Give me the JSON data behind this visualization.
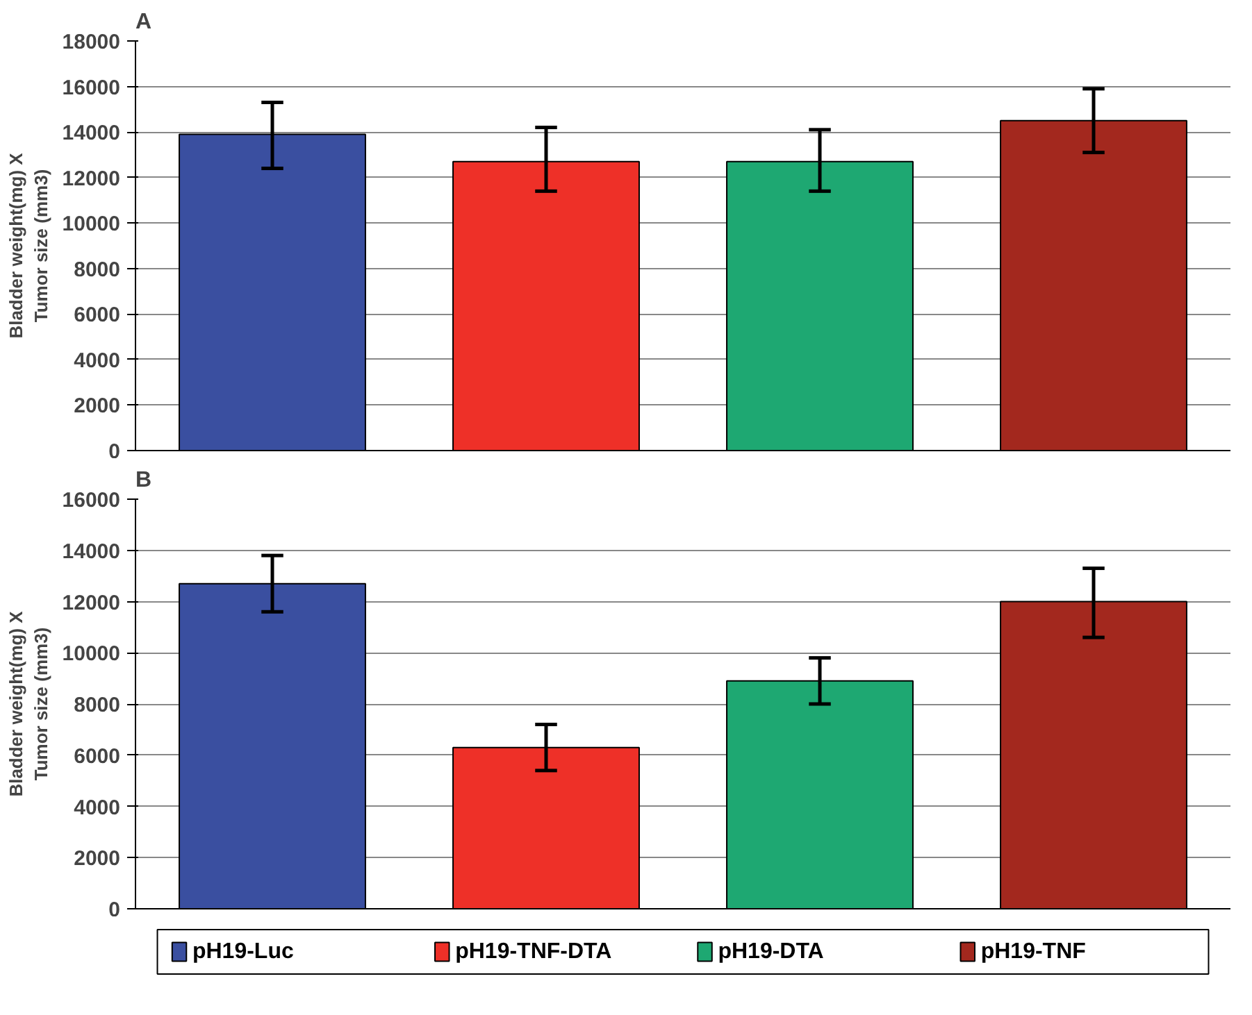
{
  "chart_data": [
    {
      "type": "bar",
      "title": "A",
      "ylabel": "Bladder weight(mg) X\nTumor size (mm3)",
      "categories": [
        null,
        null,
        null,
        null
      ],
      "ylim": [
        0,
        18000
      ],
      "yticks": [
        0,
        2000,
        4000,
        6000,
        8000,
        10000,
        12000,
        14000,
        16000,
        18000
      ],
      "grid": "y",
      "tick_labels": "y",
      "series": [
        {
          "color": "#3a4fa0",
          "values": [
            13900,
            null,
            null,
            null
          ],
          "errors": [
            [
              12400,
              15300
            ],
            null,
            null,
            null
          ]
        },
        {
          "color": "#ee3028",
          "values": [
            null,
            12700,
            null,
            null
          ],
          "errors": [
            null,
            [
              11400,
              14200
            ],
            null,
            null
          ]
        },
        {
          "color": "#1ea872",
          "values": [
            null,
            null,
            12700,
            null
          ],
          "errors": [
            null,
            null,
            [
              11400,
              14100
            ],
            null
          ]
        },
        {
          "color": "#a3281e",
          "values": [
            null,
            null,
            null,
            14500
          ],
          "errors": [
            null,
            null,
            null,
            [
              13100,
              15900
            ]
          ]
        }
      ]
    },
    {
      "type": "bar",
      "title": "B",
      "ylabel": "Bladder weight(mg) X\nTumor size (mm3)",
      "categories": [
        null,
        null,
        null,
        null
      ],
      "ylim": [
        0,
        16000
      ],
      "yticks": [
        0,
        2000,
        4000,
        6000,
        8000,
        10000,
        12000,
        14000,
        16000
      ],
      "grid": "y",
      "legend": "bottom",
      "tick_labels": "y",
      "series": [
        {
          "name": "pH19-Luc",
          "color": "#3a4fa0",
          "values": [
            12700,
            null,
            null,
            null
          ],
          "errors": [
            [
              11600,
              13800
            ],
            null,
            null,
            null
          ]
        },
        {
          "name": "pH19-TNF-DTA",
          "color": "#ee3028",
          "values": [
            null,
            6300,
            null,
            null
          ],
          "errors": [
            null,
            [
              5400,
              7200
            ],
            null,
            null
          ]
        },
        {
          "name": "pH19-DTA",
          "color": "#1ea872",
          "values": [
            null,
            null,
            8900,
            null
          ],
          "errors": [
            null,
            null,
            [
              8000,
              9800
            ],
            null
          ]
        },
        {
          "name": "pH19-TNF",
          "color": "#a3281e",
          "values": [
            null,
            null,
            null,
            12000
          ],
          "errors": [
            null,
            null,
            null,
            [
              10600,
              13300
            ]
          ]
        }
      ]
    }
  ]
}
